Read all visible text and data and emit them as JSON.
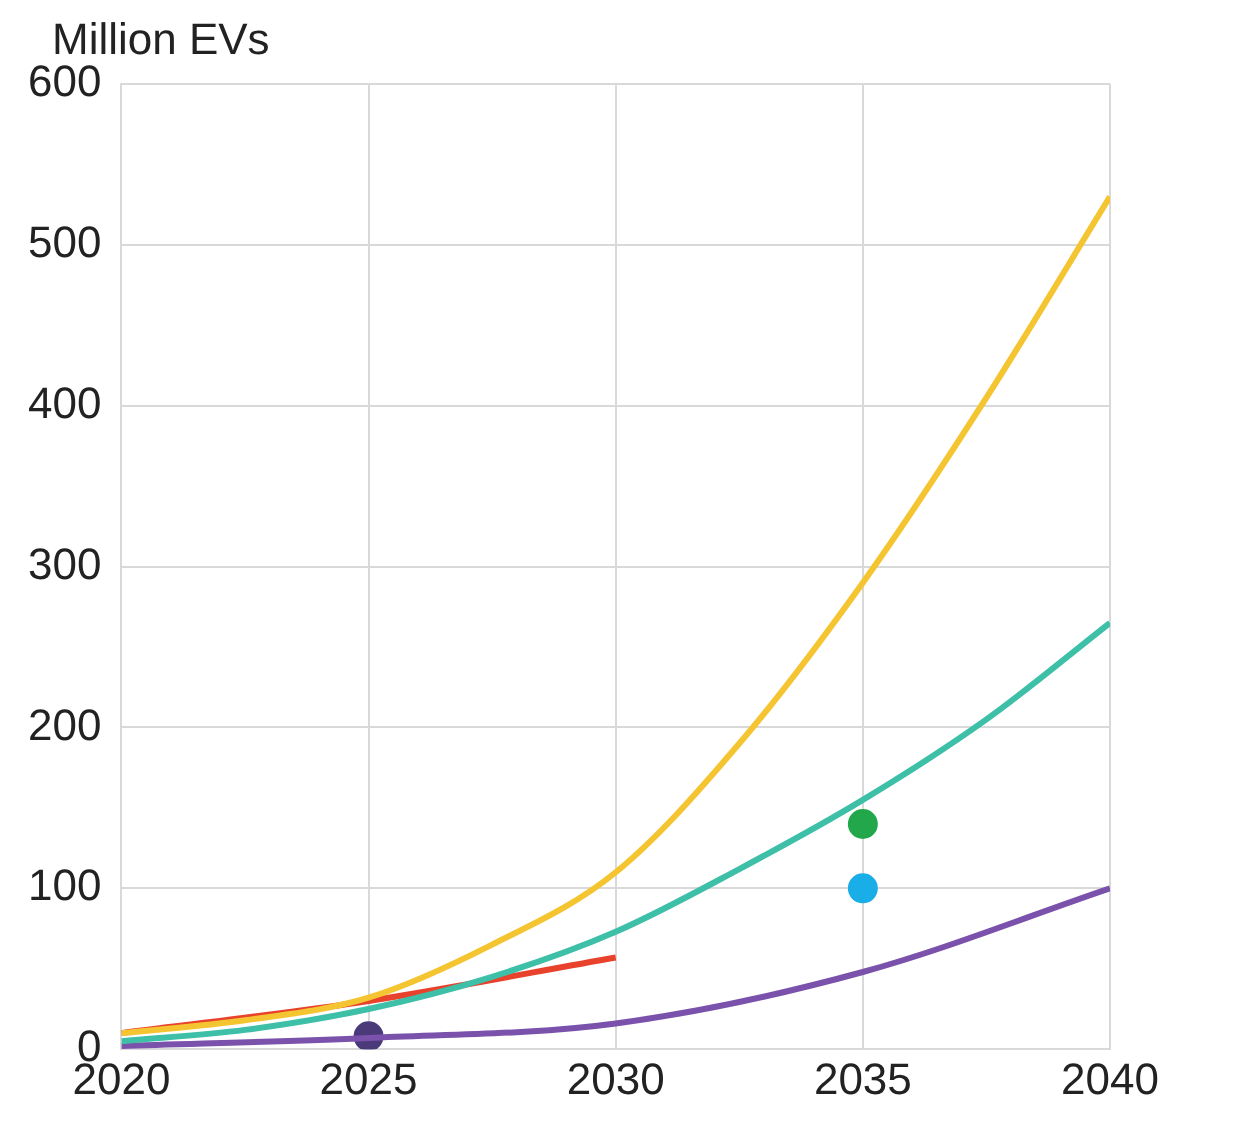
{
  "chart_data": {
    "type": "line",
    "ylabel": "Million EVs",
    "xlim": [
      2020,
      2040
    ],
    "xticks": [
      2020,
      2025,
      2030,
      2035,
      2040
    ],
    "ylim": [
      0,
      600
    ],
    "yticks": [
      0,
      100,
      200,
      300,
      400,
      500,
      600
    ],
    "grid": true,
    "legend": false,
    "series": [
      {
        "marker": "none",
        "color": "#f5c431",
        "x": [
          2020,
          2022.5,
          2025,
          2027.5,
          2030,
          2032.5,
          2035,
          2037.5,
          2040
        ],
        "values": [
          10,
          18,
          32,
          65,
          110,
          190,
          290,
          405,
          530
        ]
      },
      {
        "marker": "none",
        "color": "#3dbfa8",
        "x": [
          2020,
          2022.5,
          2025,
          2027.5,
          2030,
          2032.5,
          2035,
          2037.5,
          2040
        ],
        "values": [
          5,
          12,
          25,
          45,
          73,
          112,
          155,
          205,
          265
        ]
      },
      {
        "marker": "none",
        "color": "#e8412c",
        "x": [
          2020,
          2025,
          2030
        ],
        "values": [
          10,
          30,
          57
        ]
      },
      {
        "marker": "none",
        "color": "#7b52ab",
        "x": [
          2020,
          2025,
          2030,
          2035,
          2040
        ],
        "values": [
          2,
          7,
          16,
          48,
          100
        ]
      },
      {
        "type": "scatter",
        "marker": "circle",
        "color": "#4b3a7a",
        "x": [
          2025
        ],
        "values": [
          8
        ]
      },
      {
        "type": "scatter",
        "marker": "circle",
        "color": "#22a84a",
        "x": [
          2035
        ],
        "values": [
          140
        ]
      },
      {
        "type": "scatter",
        "marker": "circle",
        "color": "#1aaee8",
        "x": [
          2035
        ],
        "values": [
          100
        ]
      }
    ]
  }
}
